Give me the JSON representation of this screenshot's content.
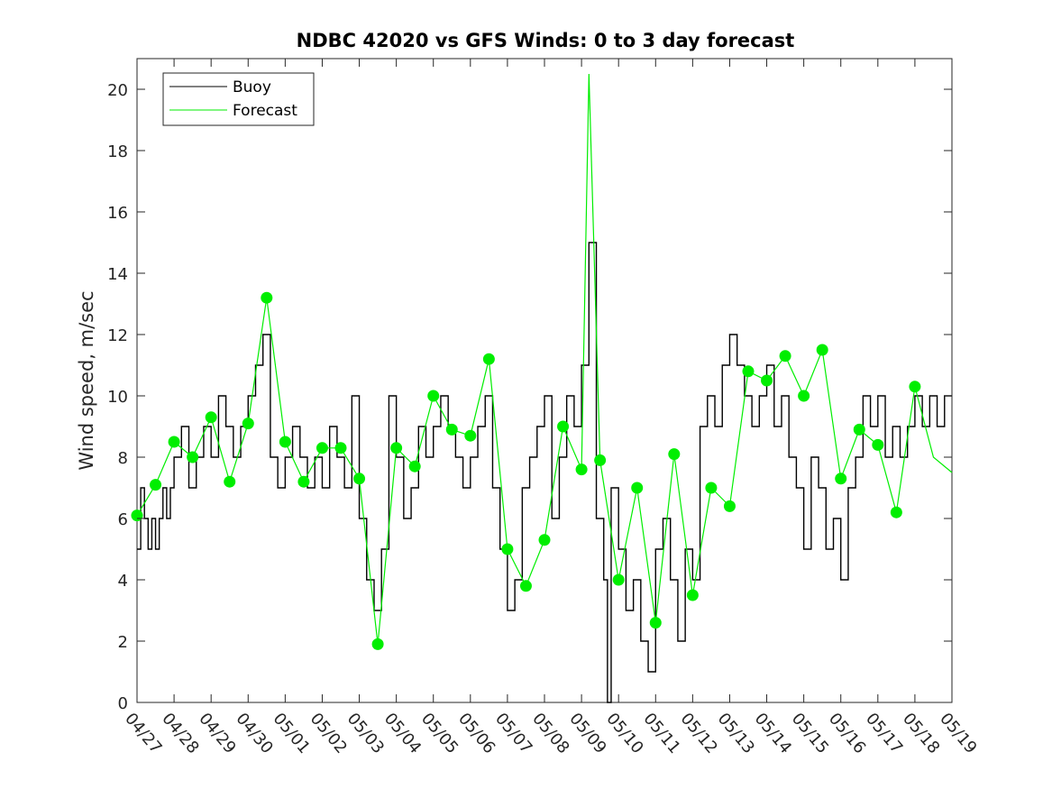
{
  "chart_data": {
    "type": "line",
    "title": "NDBC 42020 vs GFS Winds: 0 to 3 day forecast",
    "xlabel": "",
    "ylabel": "Wind speed, m/sec",
    "ylim": [
      0,
      21
    ],
    "yticks": [
      0,
      2,
      4,
      6,
      8,
      10,
      12,
      14,
      16,
      18,
      20
    ],
    "xlim": [
      0,
      22
    ],
    "xtick_labels": [
      "04/27",
      "04/28",
      "04/29",
      "04/30",
      "05/01",
      "05/02",
      "05/03",
      "05/04",
      "05/05",
      "05/06",
      "05/07",
      "05/08",
      "05/09",
      "05/10",
      "05/11",
      "05/12",
      "05/13",
      "05/14",
      "05/15",
      "05/16",
      "05/17",
      "05/18",
      "05/19"
    ],
    "grid": false,
    "legend": {
      "position": "top-left",
      "entries": [
        "Buoy",
        "Forecast"
      ]
    },
    "colors": {
      "buoy": "#000000",
      "forecast": "#00ee00",
      "axis": "#262626"
    },
    "series": [
      {
        "name": "Buoy",
        "style": "step",
        "x": [
          0.0,
          0.1,
          0.2,
          0.3,
          0.4,
          0.5,
          0.6,
          0.7,
          0.8,
          0.9,
          1.0,
          1.2,
          1.4,
          1.6,
          1.8,
          2.0,
          2.2,
          2.4,
          2.6,
          2.8,
          3.0,
          3.2,
          3.4,
          3.6,
          3.8,
          4.0,
          4.2,
          4.4,
          4.6,
          4.8,
          5.0,
          5.2,
          5.4,
          5.6,
          5.8,
          6.0,
          6.2,
          6.4,
          6.6,
          6.8,
          7.0,
          7.2,
          7.4,
          7.6,
          7.8,
          8.0,
          8.2,
          8.4,
          8.6,
          8.8,
          9.0,
          9.2,
          9.4,
          9.6,
          9.8,
          10.0,
          10.2,
          10.4,
          10.6,
          10.8,
          11.0,
          11.2,
          11.4,
          11.6,
          11.8,
          12.0,
          12.2,
          12.4,
          12.6,
          12.7,
          12.8,
          13.0,
          13.2,
          13.4,
          13.6,
          13.8,
          14.0,
          14.2,
          14.4,
          14.6,
          14.8,
          15.0,
          15.2,
          15.4,
          15.6,
          15.8,
          16.0,
          16.2,
          16.4,
          16.6,
          16.8,
          17.0,
          17.2,
          17.4,
          17.6,
          17.8,
          18.0,
          18.2,
          18.4,
          18.6,
          18.8,
          19.0,
          19.2,
          19.4,
          19.6,
          19.8,
          20.0,
          20.2,
          20.4,
          20.6,
          20.8,
          21.0,
          21.2,
          21.4,
          21.6,
          21.8
        ],
        "values": [
          5,
          7,
          6,
          5,
          6,
          5,
          6,
          7,
          6,
          7,
          8,
          9,
          7,
          8,
          9,
          8,
          10,
          9,
          8,
          9,
          10,
          11,
          12,
          8,
          7,
          8,
          9,
          8,
          7,
          8,
          7,
          9,
          8,
          7,
          10,
          6,
          4,
          3,
          5,
          10,
          8,
          6,
          7,
          9,
          8,
          9,
          10,
          9,
          8,
          7,
          8,
          9,
          10,
          7,
          5,
          3,
          4,
          7,
          8,
          9,
          10,
          6,
          8,
          10,
          9,
          11,
          15,
          6,
          4,
          0,
          7,
          5,
          3,
          4,
          2,
          1,
          5,
          6,
          4,
          2,
          5,
          4,
          9,
          10,
          9,
          11,
          12,
          11,
          10,
          9,
          10,
          11,
          9,
          10,
          8,
          7,
          5,
          8,
          7,
          5,
          6,
          4,
          7,
          8,
          10,
          9,
          10,
          8,
          9,
          8,
          9,
          10,
          9,
          10,
          9,
          10
        ]
      },
      {
        "name": "Forecast",
        "style": "line",
        "x": [
          0.0,
          0.5,
          1.0,
          1.5,
          2.0,
          2.5,
          3.0,
          3.5,
          4.0,
          4.5,
          5.0,
          5.5,
          6.0,
          6.5,
          7.0,
          7.5,
          8.0,
          8.5,
          9.0,
          9.5,
          10.0,
          10.5,
          11.0,
          11.5,
          12.0,
          12.2,
          12.5,
          13.0,
          13.5,
          14.0,
          14.5,
          15.0,
          15.5,
          16.0,
          16.5,
          17.0,
          17.5,
          18.0,
          18.5,
          19.0,
          19.5,
          20.0,
          20.5,
          21.0,
          21.5,
          22.0
        ],
        "values": [
          6.1,
          7.1,
          8.5,
          8.0,
          9.3,
          7.2,
          9.1,
          13.2,
          8.5,
          7.2,
          8.3,
          8.3,
          7.3,
          1.9,
          8.3,
          7.7,
          10.0,
          8.9,
          8.7,
          11.2,
          5.0,
          3.8,
          5.3,
          9.0,
          7.6,
          20.5,
          7.9,
          4.0,
          7.0,
          2.6,
          8.1,
          3.5,
          7.0,
          6.4,
          10.8,
          10.5,
          11.3,
          10.0,
          11.5,
          7.3,
          8.9,
          8.4,
          6.2,
          10.3,
          8.0,
          7.5
        ]
      },
      {
        "name": "",
        "style": "markers",
        "x": [
          0.0,
          0.5,
          1.0,
          1.5,
          2.0,
          2.5,
          3.0,
          3.5,
          4.0,
          4.5,
          5.0,
          5.5,
          6.0,
          6.5,
          7.0,
          7.5,
          8.0,
          8.5,
          9.0,
          9.5,
          10.0,
          10.5,
          11.0,
          11.5,
          12.0,
          12.5,
          13.0,
          13.5,
          14.0,
          14.5,
          15.0,
          15.5,
          16.0,
          16.5,
          17.0,
          17.5,
          18.0,
          18.5,
          19.0,
          19.5,
          20.0,
          20.5,
          21.0
        ],
        "values": [
          6.1,
          7.1,
          8.5,
          8.0,
          9.3,
          7.2,
          9.1,
          13.2,
          8.5,
          7.2,
          8.3,
          8.3,
          7.3,
          1.9,
          8.3,
          7.7,
          10.0,
          8.9,
          8.7,
          11.2,
          5.0,
          3.8,
          5.3,
          9.0,
          7.6,
          7.9,
          4.0,
          7.0,
          2.6,
          8.1,
          3.5,
          7.0,
          6.4,
          10.8,
          10.5,
          11.3,
          10.0,
          11.5,
          7.3,
          8.9,
          8.4,
          6.2,
          10.3
        ]
      }
    ]
  }
}
